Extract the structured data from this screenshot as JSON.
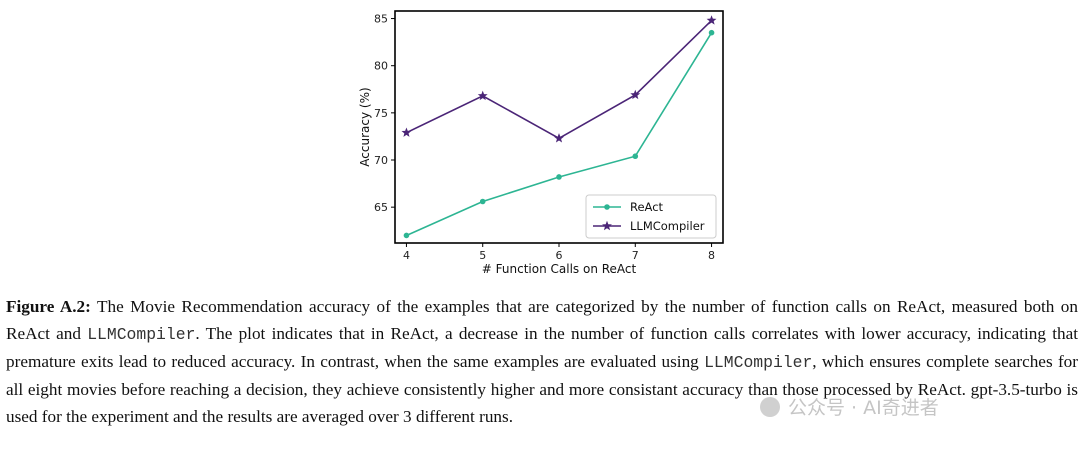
{
  "chart_data": {
    "type": "line",
    "x": [
      4,
      5,
      6,
      7,
      8
    ],
    "series": [
      {
        "name": "ReAct",
        "values": [
          62.0,
          65.6,
          68.2,
          70.4,
          83.5
        ],
        "color": "#2db593",
        "marker": "circle"
      },
      {
        "name": "LLMCompiler",
        "values": [
          72.9,
          76.8,
          72.3,
          76.9,
          84.8
        ],
        "color": "#4b2577",
        "marker": "star"
      }
    ],
    "xlabel": "# Function Calls on ReAct",
    "ylabel": "Accuracy (%)",
    "xlim": [
      3.85,
      8.15
    ],
    "ylim": [
      61.2,
      85.8
    ],
    "xticks": [
      "4",
      "5",
      "6",
      "7",
      "8"
    ],
    "yticks": [
      65,
      70,
      75,
      80,
      85
    ],
    "ytick_labels": [
      "65",
      "70",
      "75",
      "80",
      "85"
    ],
    "legend": "lower-right",
    "grid": false
  },
  "caption": {
    "label": "Figure A.2:",
    "part1": " The Movie Recommendation accuracy of the examples that are categorized by the number of function calls on ReAct, measured both on ReAct and ",
    "mono1": "LLMCompiler",
    "part2": ". The plot indicates that in ReAct, a decrease in the number of function calls correlates with lower accuracy, indicating that premature exits lead to reduced accuracy. In contrast, when the same examples are evaluated using ",
    "mono2": "LLMCompiler",
    "part3": ", which ensures complete searches for all eight movies before reaching a decision, they achieve consistently higher and more consistant accuracy than those processed by ReAct. gpt-3.5-turbo is used for the experiment and the results are averaged over 3 different runs."
  },
  "watermark": "公众号 · AI奇进者"
}
